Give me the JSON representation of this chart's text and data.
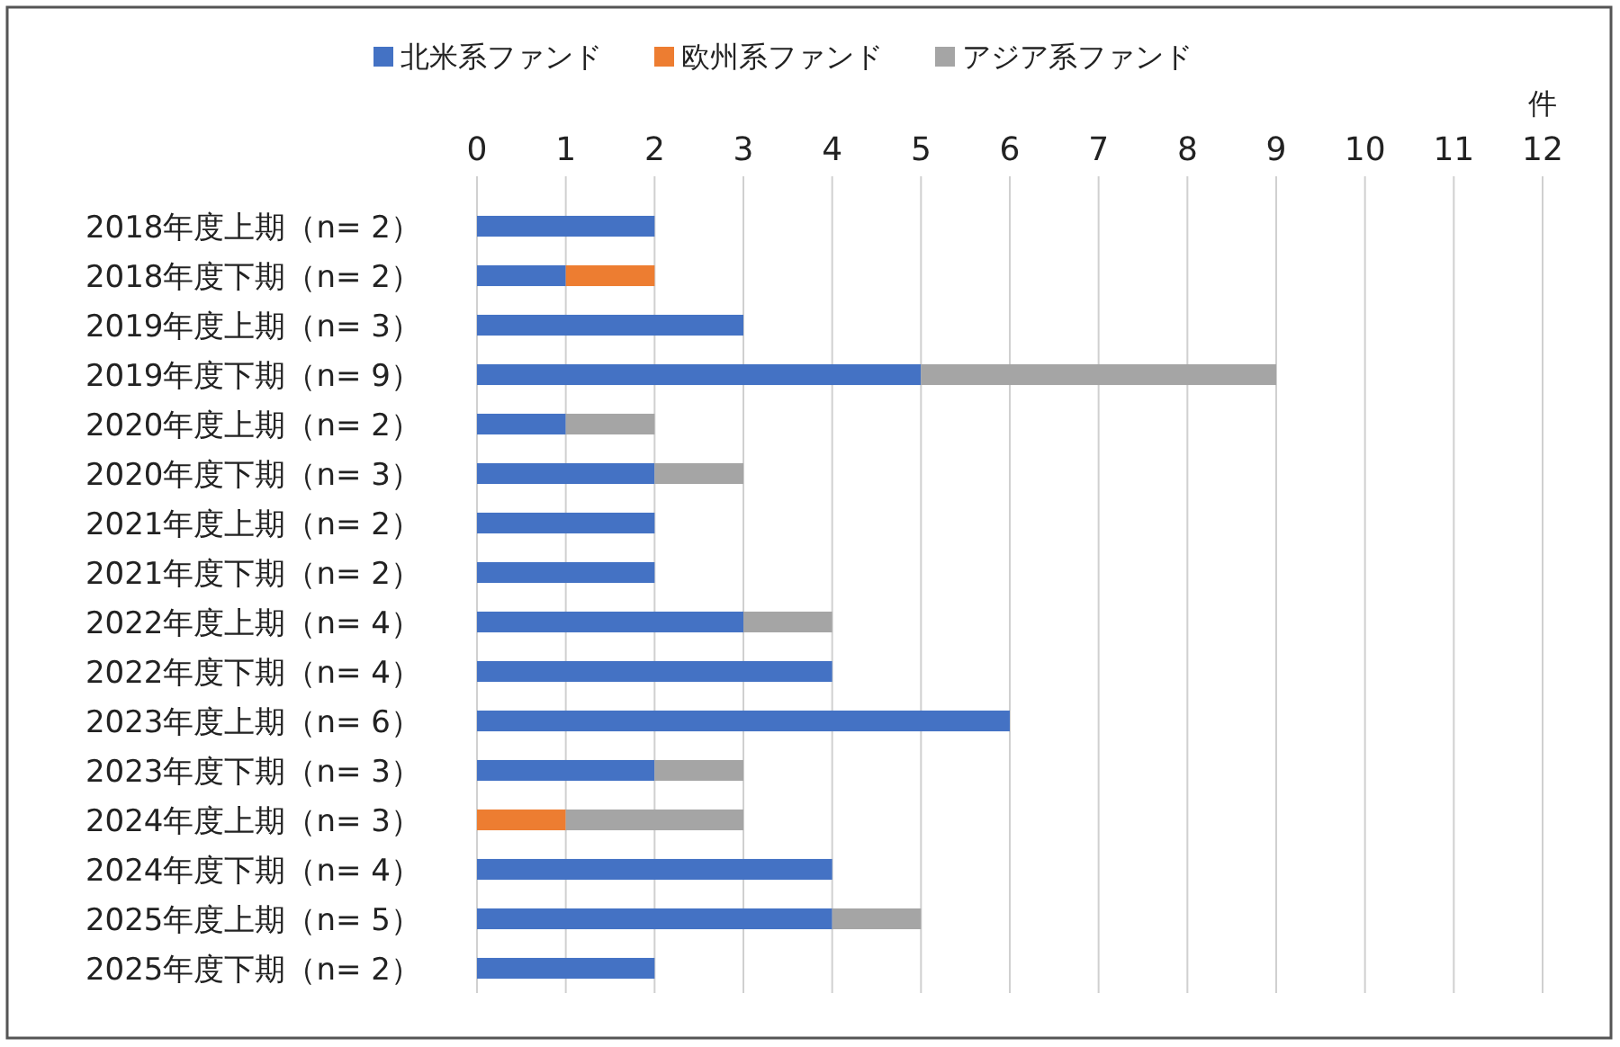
{
  "chart_data": {
    "type": "bar",
    "orientation": "horizontal",
    "stacked": true,
    "xlabel": "件",
    "categories": [
      "2018年度上期（n=  2）",
      "2018年度下期（n=  2）",
      "2019年度上期（n=  3）",
      "2019年度下期（n=  9）",
      "2020年度上期（n=  2）",
      "2020年度下期（n=  3）",
      "2021年度上期（n=  2）",
      "2021年度下期（n=  2）",
      "2022年度上期（n=  4）",
      "2022年度下期（n=  4）",
      "2023年度上期（n=  6）",
      "2023年度下期（n=  3）",
      "2024年度上期（n=  3）",
      "2024年度下期（n=  4）",
      "2025年度上期（n=  5）",
      "2025年度下期（n=  2）"
    ],
    "series": [
      {
        "name": "北米系ファンド",
        "color": "#4472c4",
        "values": [
          2,
          1,
          3,
          5,
          1,
          2,
          2,
          2,
          3,
          4,
          6,
          2,
          0,
          4,
          4,
          2
        ]
      },
      {
        "name": "欧州系ファンド",
        "color": "#ed7d31",
        "values": [
          0,
          1,
          0,
          0,
          0,
          0,
          0,
          0,
          0,
          0,
          0,
          0,
          1,
          0,
          0,
          0
        ]
      },
      {
        "name": "アジア系ファンド",
        "color": "#a5a5a5",
        "values": [
          0,
          0,
          0,
          4,
          1,
          1,
          0,
          0,
          1,
          0,
          0,
          1,
          2,
          0,
          1,
          0
        ]
      }
    ],
    "xlim": [
      0,
      12
    ],
    "xticks": [
      0,
      1,
      2,
      3,
      4,
      5,
      6,
      7,
      8,
      9,
      10,
      11,
      12
    ],
    "grid": "x",
    "legend": "top"
  }
}
